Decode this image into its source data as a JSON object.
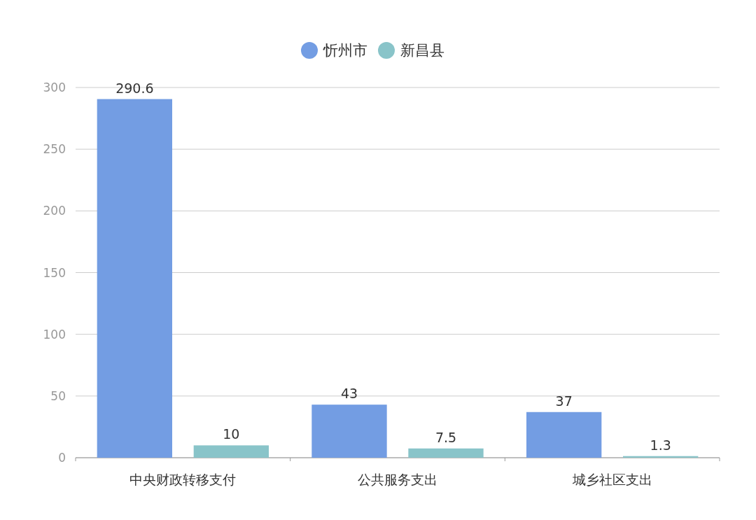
{
  "chart_data": {
    "type": "bar",
    "categories": [
      "中央财政转移支付",
      "公共服务支出",
      "城乡社区支出"
    ],
    "series": [
      {
        "name": "忻州市",
        "color": "#739de3",
        "values": [
          290.6,
          43,
          37
        ]
      },
      {
        "name": "新昌县",
        "color": "#89c4c9",
        "values": [
          10,
          7.5,
          1.3
        ]
      }
    ],
    "ylim": [
      0,
      300
    ],
    "yticks": [
      0,
      50,
      100,
      150,
      200,
      250,
      300
    ],
    "grid": "y",
    "legend": "top",
    "data_labels": true
  }
}
